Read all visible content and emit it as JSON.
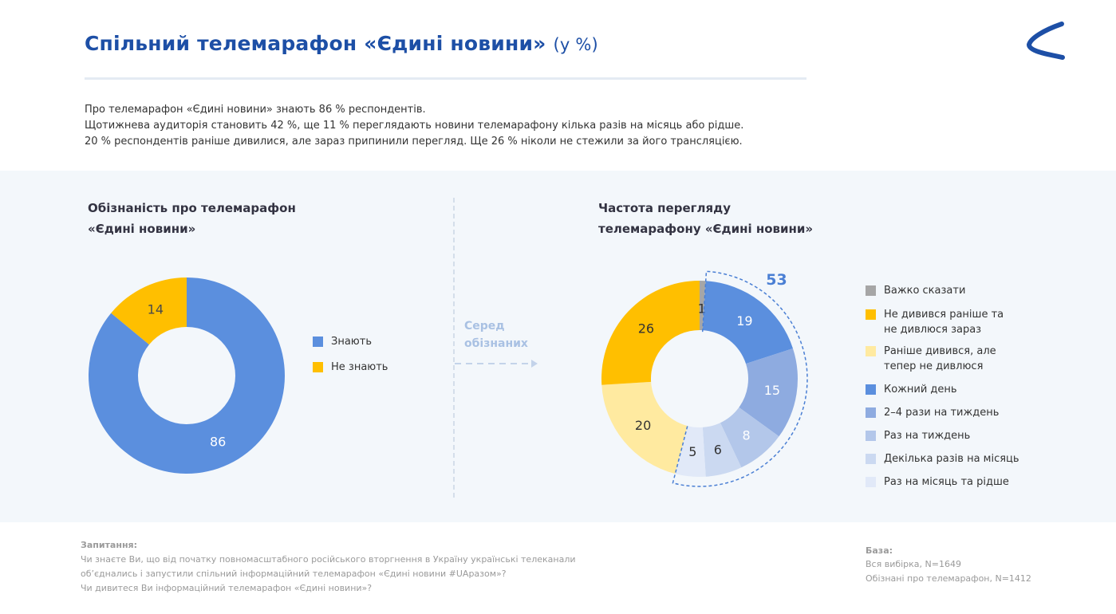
{
  "header": {
    "title": "Спільний телемарафон «Єдині новини»",
    "unit": "(у %)"
  },
  "intro": [
    "Про телемарафон «Єдині новини» знають 86 % респондентів.",
    "Щотижнева аудиторія становить 42 %, ще 11 % переглядають новини телемарафону кілька разів на місяць або рідше.",
    "20 % респондентів раніше дивилися, але зараз припинили перегляд. Ще 26 % ніколи не стежили за його трансляцією."
  ],
  "connector": {
    "line1": "Серед",
    "line2": "обізнаних"
  },
  "colors": {
    "title": "#1d4fa6",
    "panel": "#f3f7fb",
    "accent": "#4a7fd4"
  },
  "chart_data": [
    {
      "type": "pie",
      "variant": "donut",
      "title_lines": [
        "Обізнаність про телемарафон",
        "«Єдині новини»"
      ],
      "slices": [
        {
          "label": "Знають",
          "value": 86,
          "color": "#5b8fde",
          "text_color": "#ffffff"
        },
        {
          "label": "Не знають",
          "value": 14,
          "color": "#ffbf00",
          "text_color": "#4a4a4a"
        }
      ],
      "legend": "right"
    },
    {
      "type": "pie",
      "variant": "donut",
      "title_lines": [
        "Частота перегляду",
        "телемарафону «Єдині новини»"
      ],
      "slices": [
        {
          "label": "Важко сказати",
          "value": 1,
          "color": "#a6a6a6",
          "text_color": "#333333"
        },
        {
          "label": "Кожний день",
          "value": 19,
          "color": "#5b8fde",
          "text_color": "#ffffff"
        },
        {
          "label": "2–4 рази на тиждень",
          "value": 15,
          "color": "#8eabe0",
          "text_color": "#ffffff"
        },
        {
          "label": "Раз на тиждень",
          "value": 8,
          "color": "#b3c7ea",
          "text_color": "#ffffff"
        },
        {
          "label": "Декілька разів на місяць",
          "value": 6,
          "color": "#cbd9f1",
          "text_color": "#333333"
        },
        {
          "label": "Раз на місяць та рідше",
          "value": 5,
          "color": "#e1e9f8",
          "text_color": "#333333"
        },
        {
          "label": "Раніше дивився, але\nтепер не дивлюся",
          "value": 20,
          "color": "#ffeaa0",
          "text_color": "#333333"
        },
        {
          "label": "Не дивився раніше та\nне дивлюся зараз",
          "value": 26,
          "color": "#ffbf00",
          "text_color": "#333333"
        }
      ],
      "legend_order": [
        0,
        7,
        6,
        1,
        2,
        3,
        4,
        5
      ],
      "legend": "right",
      "highlight": {
        "value": "53",
        "from_slice": 1,
        "to_slice": 5,
        "color": "#4a7fd4"
      }
    }
  ],
  "footer": {
    "question_head": "Запитання:",
    "question_lines": [
      "Чи знаєте Ви, що від початку повномасштабного російського вторгнення в Україну українські телеканали",
      "об’єднались і запустили спільний інформаційний телемарафон «Єдині новини #UAразом»?",
      "Чи дивитеся Ви інформаційний телемарафон «Єдині новини»?"
    ],
    "base_head": "База:",
    "base_lines": [
      "Вся вибірка, N=1649",
      "Обізнані про телемарафон, N=1412"
    ]
  }
}
